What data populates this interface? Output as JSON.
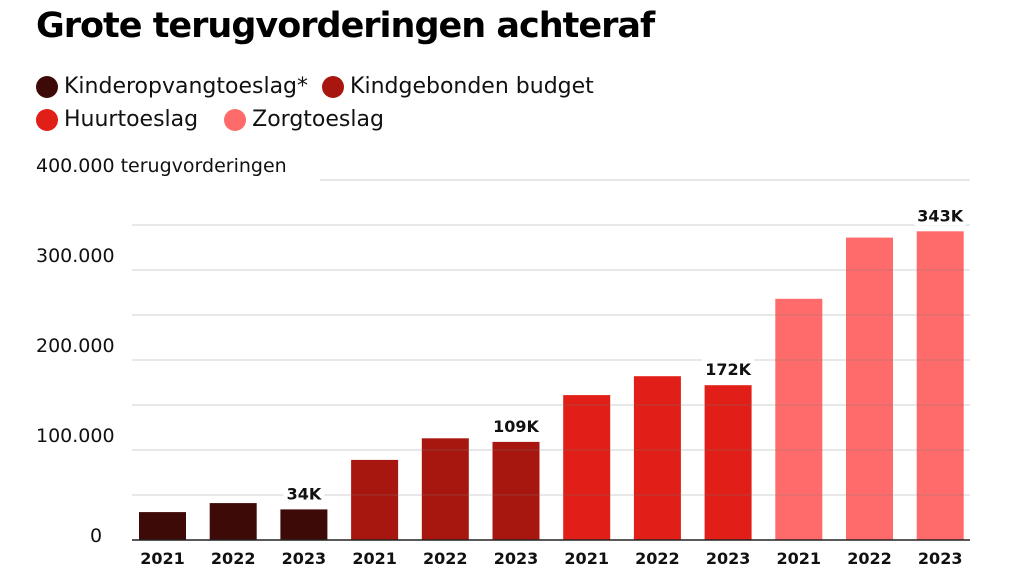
{
  "chart_data": {
    "type": "bar",
    "title": "Grote terugvorderingen achteraf",
    "ylabel": "terugvorderingen",
    "ylim": [
      0,
      400000
    ],
    "yticks": [
      {
        "value": 0,
        "label": "0"
      },
      {
        "value": 100000,
        "label": "100.000"
      },
      {
        "value": 200000,
        "label": "200.000"
      },
      {
        "value": 300000,
        "label": "300.000"
      },
      {
        "value": 400000,
        "label": "400.000 terugvorderingen"
      }
    ],
    "gridlines": [
      50000,
      100000,
      150000,
      200000,
      250000,
      300000,
      350000,
      400000
    ],
    "legend_position": "top-left",
    "categories": [
      "2021",
      "2022",
      "2023"
    ],
    "series": [
      {
        "name": "Kinderopvangtoeslag*",
        "color": "#3e0a07",
        "values": [
          31000,
          41000,
          34000
        ],
        "label_last": "34K"
      },
      {
        "name": "Kindgebonden budget",
        "color": "#a8170f",
        "values": [
          89000,
          113000,
          109000
        ],
        "label_last": "109K"
      },
      {
        "name": "Huurtoeslag",
        "color": "#e11f18",
        "values": [
          161000,
          182000,
          172000
        ],
        "label_last": "172K"
      },
      {
        "name": "Zorgtoeslag",
        "color": "#ff6b6b",
        "values": [
          268000,
          336000,
          343000
        ],
        "label_last": "343K"
      }
    ]
  }
}
